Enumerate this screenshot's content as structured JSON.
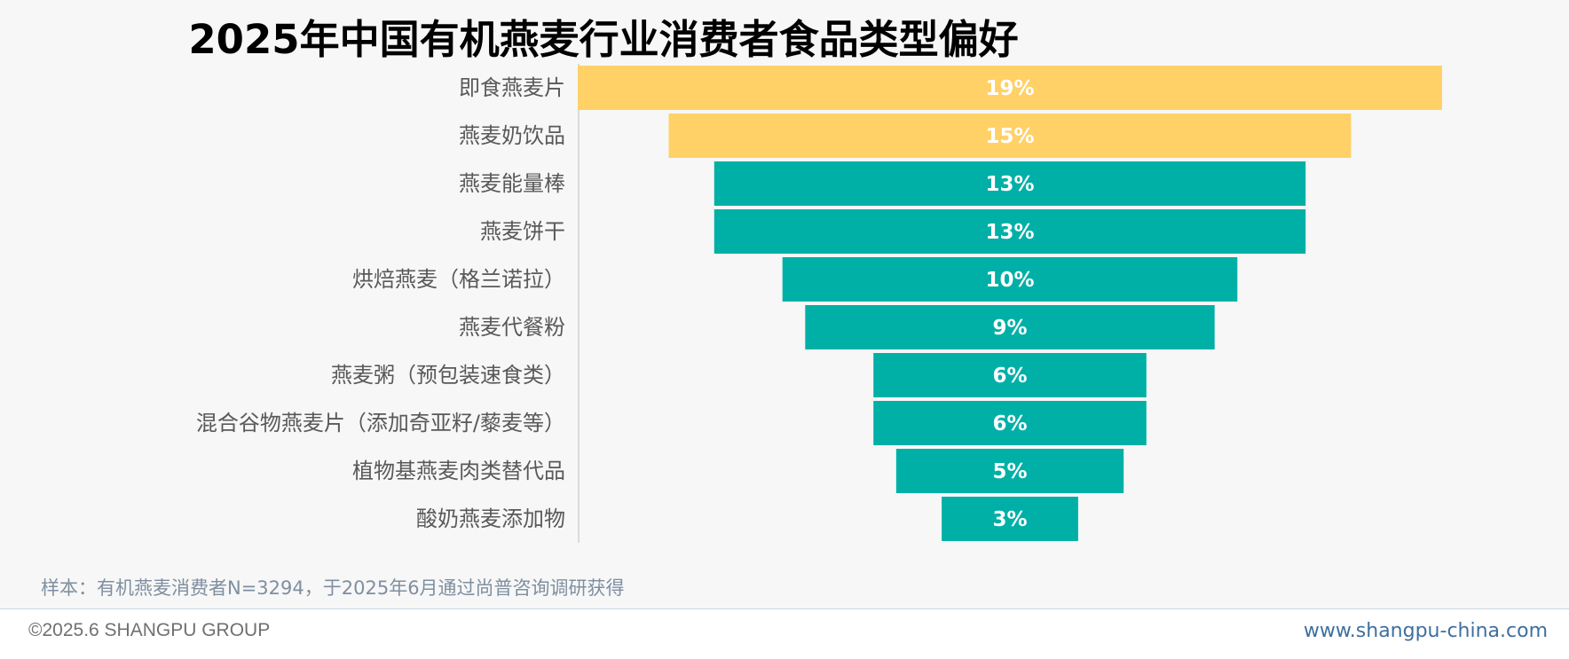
{
  "chart_data": {
    "type": "bar",
    "title": "2025年中国有机燕麦行业消费者食品类型偏好",
    "categories": [
      "即食燕麦片",
      "燕麦奶饮品",
      "燕麦能量棒",
      "燕麦饼干",
      "烘焙燕麦（格兰诺拉）",
      "燕麦代餐粉",
      "燕麦粥（预包装速食类）",
      "混合谷物燕麦片（添加奇亚籽/藜麦等）",
      "植物基燕麦肉类替代品",
      "酸奶燕麦添加物"
    ],
    "values": [
      19,
      15,
      13,
      13,
      10,
      9,
      6,
      6,
      5,
      3
    ],
    "value_labels": [
      "19%",
      "15%",
      "13%",
      "13%",
      "10%",
      "9%",
      "6%",
      "6%",
      "5%",
      "3%"
    ],
    "highlight_count": 2,
    "colors": {
      "highlight": "#ffd166",
      "normal": "#00b0a6"
    },
    "xlabel": "",
    "ylabel": "",
    "style": "funnel"
  },
  "note": "样本：有机燕麦消费者N=3294，于2025年6月通过尚普咨询调研获得",
  "footer": {
    "copyright": "©2025.6 SHANGPU GROUP",
    "url": "www.shangpu-china.com"
  }
}
